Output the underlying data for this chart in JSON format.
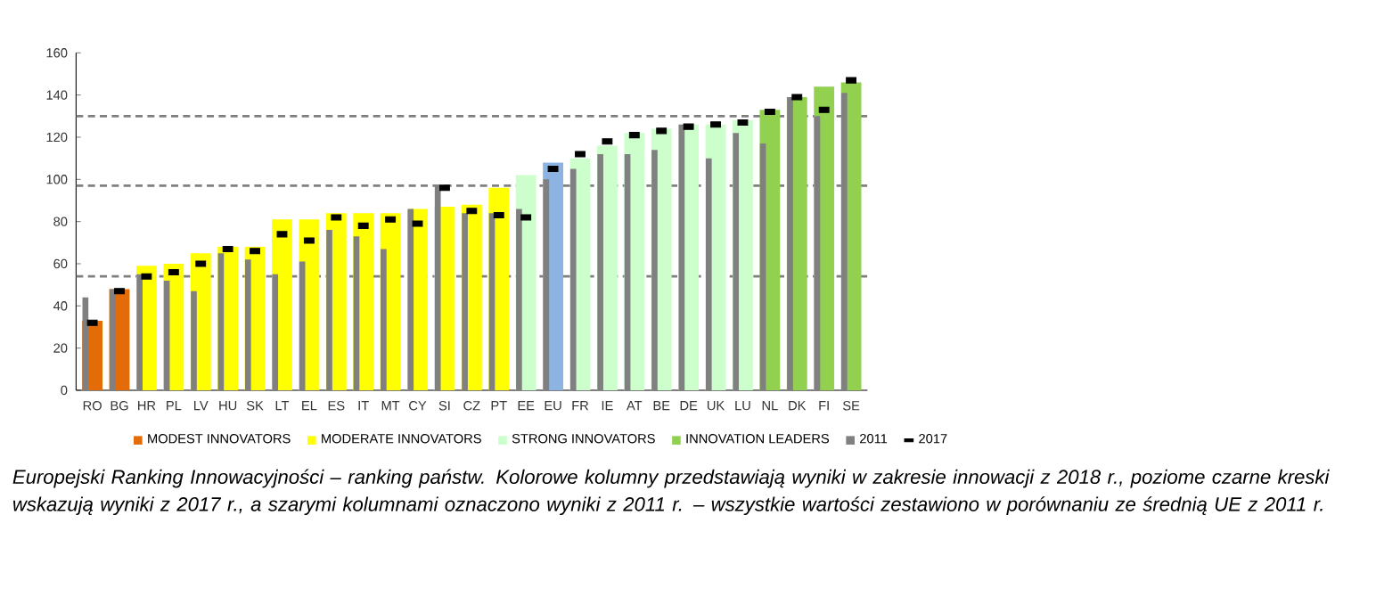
{
  "chart_data": {
    "type": "bar",
    "categories": [
      "RO",
      "BG",
      "HR",
      "PL",
      "LV",
      "HU",
      "SK",
      "LT",
      "EL",
      "ES",
      "IT",
      "MT",
      "CY",
      "SI",
      "CZ",
      "PT",
      "EE",
      "EU",
      "FR",
      "IE",
      "AT",
      "BE",
      "DE",
      "UK",
      "LU",
      "NL",
      "DK",
      "FI",
      "SE"
    ],
    "series": [
      {
        "name": "MODEST INNOVATORS",
        "color": "#e36c09",
        "values": [
          33,
          48,
          null,
          null,
          null,
          null,
          null,
          null,
          null,
          null,
          null,
          null,
          null,
          null,
          null,
          null,
          null,
          null,
          null,
          null,
          null,
          null,
          null,
          null,
          null,
          null,
          null,
          null,
          null
        ]
      },
      {
        "name": "MODERATE INNOVATORS",
        "color": "#ffff00",
        "values": [
          null,
          null,
          59,
          60,
          65,
          68,
          68,
          81,
          81,
          84,
          84,
          84,
          86,
          87,
          88,
          96,
          null,
          null,
          null,
          null,
          null,
          null,
          null,
          null,
          null,
          null,
          null,
          null,
          null
        ]
      },
      {
        "name": "STRONG INNOVATORS",
        "color": "#ccffcc",
        "values": [
          null,
          null,
          null,
          null,
          null,
          null,
          null,
          null,
          null,
          null,
          null,
          null,
          null,
          null,
          null,
          null,
          102,
          null,
          110,
          116,
          122,
          124,
          126,
          126,
          128,
          null,
          null,
          null,
          null
        ]
      },
      {
        "name": "INNOVATION LEADERS",
        "color": "#92d050",
        "values": [
          null,
          null,
          null,
          null,
          null,
          null,
          null,
          null,
          null,
          null,
          null,
          null,
          null,
          null,
          null,
          null,
          null,
          null,
          null,
          null,
          null,
          null,
          null,
          null,
          null,
          133,
          139,
          144,
          146
        ]
      },
      {
        "color": "#8db3e2",
        "values": [
          null,
          null,
          null,
          null,
          null,
          null,
          null,
          null,
          null,
          null,
          null,
          null,
          null,
          null,
          null,
          null,
          null,
          108,
          null,
          null,
          null,
          null,
          null,
          null,
          null,
          null,
          null,
          null,
          null
        ]
      },
      {
        "name": "2011",
        "color": "#808080",
        "values": [
          44,
          48,
          55,
          52,
          47,
          65,
          62,
          55,
          61,
          76,
          73,
          67,
          86,
          97,
          84,
          84,
          86,
          100,
          105,
          112,
          112,
          114,
          126,
          110,
          122,
          117,
          139,
          130,
          141
        ]
      },
      {
        "name": "2017",
        "type": "scatter",
        "marker": "square",
        "color": "#000000",
        "values": [
          32,
          47,
          54,
          56,
          60,
          67,
          66,
          74,
          71,
          82,
          78,
          81,
          79,
          96,
          85,
          83,
          82,
          105,
          112,
          118,
          121,
          123,
          125,
          126,
          127,
          132,
          139,
          133,
          147
        ]
      }
    ],
    "ylim": [
      0,
      160
    ],
    "yticks": [
      0,
      20,
      40,
      60,
      80,
      100,
      120,
      140,
      160
    ],
    "ref_lines": [
      {
        "axis": "y",
        "value": 54,
        "color": "#808080",
        "line_style": "dashed"
      },
      {
        "axis": "y",
        "value": 97,
        "color": "#808080",
        "line_style": "dashed"
      },
      {
        "axis": "y",
        "value": 130,
        "color": "#808080",
        "line_style": "dashed"
      }
    ],
    "legend": "bottom",
    "annotations": [
      "Europejski Ranking Innowacyjności – ranking państw. Kolorowe kolumny przedstawiają wyniki w zakresie innowacji z 2018 r., poziome czarne kreski wskazują wyniki z 2017 r., a szarymi kolumnami oznaczono wyniki z 2011 r. – wszystkie wartości zestawiono w porównaniu ze średnią UE z 2011 r."
    ]
  }
}
